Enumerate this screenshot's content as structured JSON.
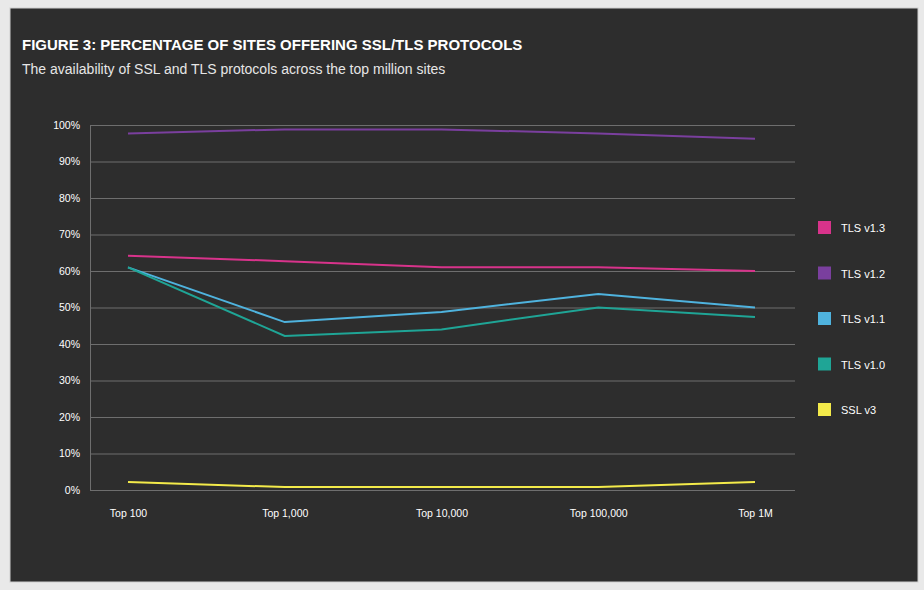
{
  "chart_data": {
    "type": "line",
    "title": "FIGURE 3: PERCENTAGE OF SITES OFFERING SSL/TLS PROTOCOLS",
    "subtitle": "The availability of SSL and TLS protocols across the top million sites",
    "categories": [
      "Top 100",
      "Top 1,000",
      "Top 10,000",
      "Top 100,000",
      "Top 1M"
    ],
    "series": [
      {
        "name": "TLS v1.3",
        "color": "#d8338b",
        "values": [
          64.2,
          62.7,
          61,
          61,
          60
        ]
      },
      {
        "name": "TLS v1.2",
        "color": "#7a3f9e",
        "values": [
          97.7,
          98.8,
          98.8,
          97.7,
          96.2
        ]
      },
      {
        "name": "TLS v1.1",
        "color": "#4fb3de",
        "values": [
          61,
          46,
          48.8,
          53.7,
          50
        ]
      },
      {
        "name": "TLS v1.0",
        "color": "#1fa596",
        "values": [
          61,
          42.2,
          44,
          50,
          47.4
        ]
      },
      {
        "name": "SSL v3",
        "color": "#f3ea4a",
        "values": [
          2.2,
          0.8,
          0.8,
          0.8,
          2.2
        ]
      }
    ],
    "ylim": [
      0,
      100
    ],
    "yticks": [
      {
        "value": 0,
        "label": "0%"
      },
      {
        "value": 10,
        "label": "10%"
      },
      {
        "value": 20,
        "label": "20%"
      },
      {
        "value": 30,
        "label": "30%"
      },
      {
        "value": 40,
        "label": "40%"
      },
      {
        "value": 50,
        "label": "50%"
      },
      {
        "value": 60,
        "label": "60%"
      },
      {
        "value": 70,
        "label": "70%"
      },
      {
        "value": 80,
        "label": "80%"
      },
      {
        "value": 90,
        "label": "90%"
      },
      {
        "value": 100,
        "label": "100%"
      }
    ],
    "grid": true,
    "legend": "right"
  }
}
